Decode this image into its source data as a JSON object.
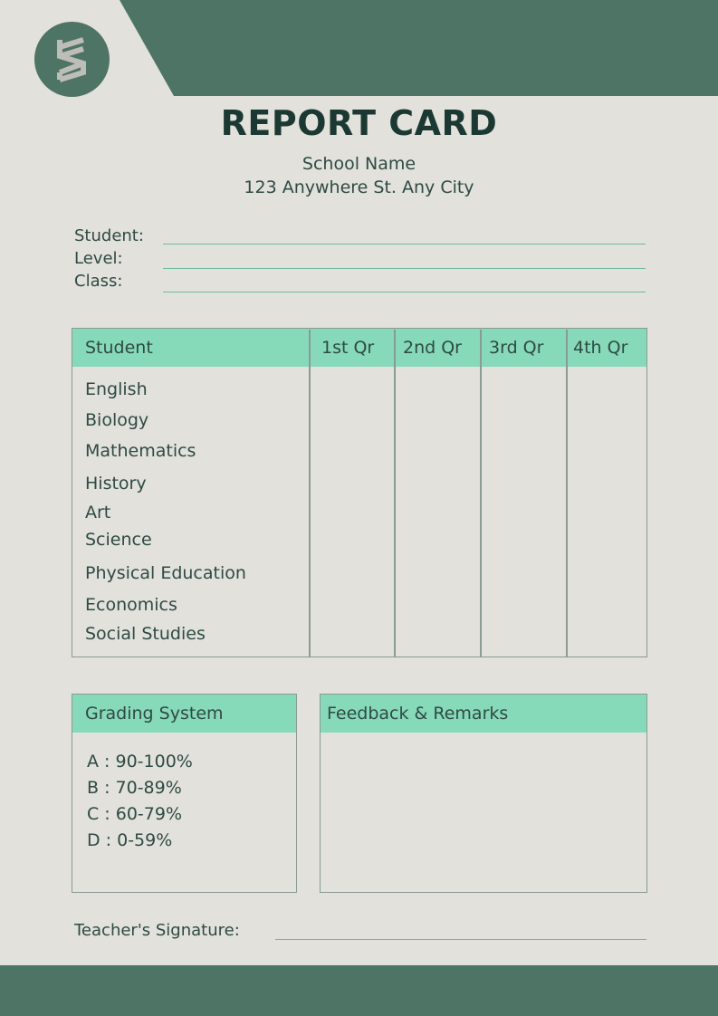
{
  "title": "REPORT CARD",
  "school_name": "School Name",
  "address": "123 Anywhere St. Any City",
  "fields": {
    "student": "Student:",
    "level": "Level:",
    "class": "Class:"
  },
  "table": {
    "headers": [
      "Student",
      "1st Qr",
      "2nd Qr",
      "3rd Qr",
      "4th Qr"
    ],
    "subjects": [
      "English",
      "Biology",
      "Mathematics",
      "History",
      "Art",
      "Science",
      "Physical Education",
      "Economics",
      "Social Studies"
    ]
  },
  "grading": {
    "title": "Grading System",
    "items": [
      "A : 90-100%",
      "B : 70-89%",
      "C : 60-79%",
      "D : 0-59%"
    ]
  },
  "feedback": {
    "title": "Feedback & Remarks"
  },
  "signature": "Teacher's  Signature:",
  "colors": {
    "background": "#e2e1dc",
    "dark_green": "#4e7466",
    "mint": "#86d9b9"
  },
  "logo_icon": "capcut-logo-icon"
}
